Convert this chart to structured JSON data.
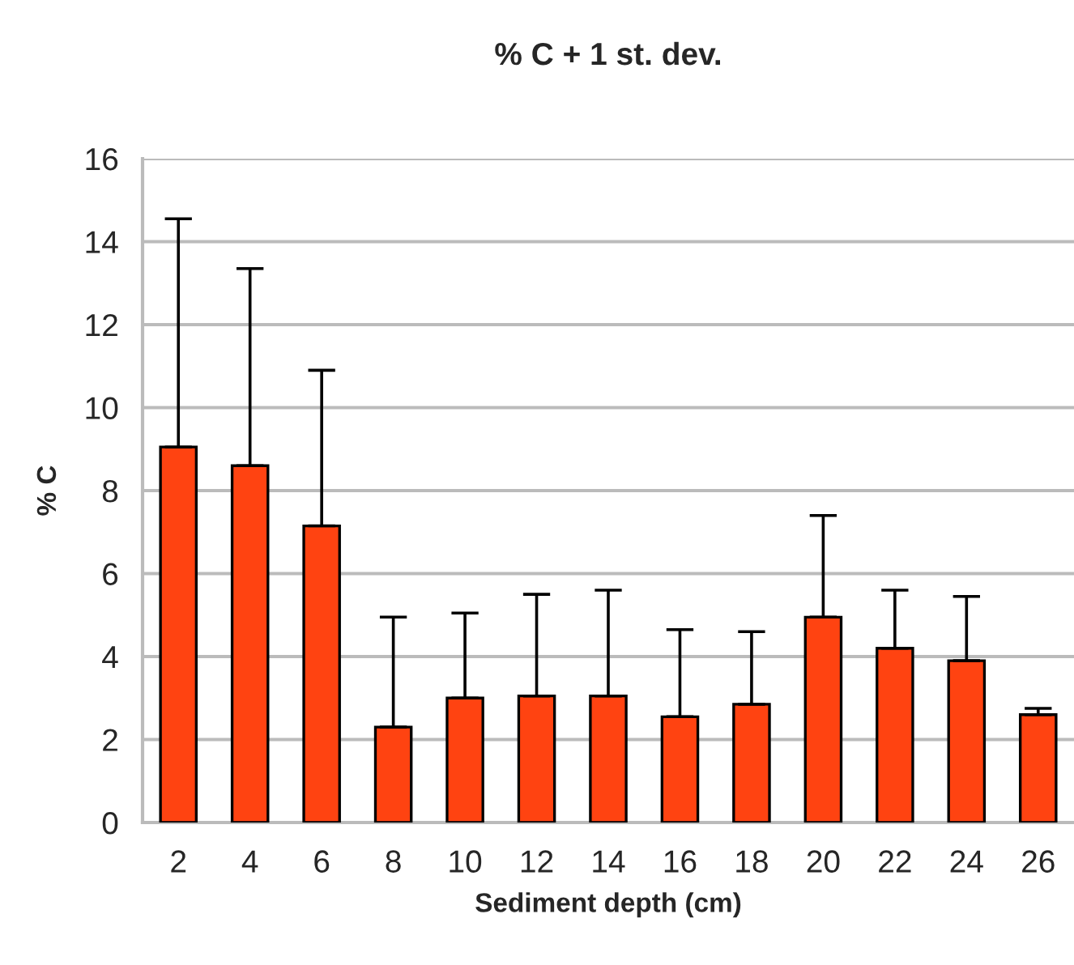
{
  "chart_data": {
    "type": "bar",
    "title": "% C + 1 st. dev.",
    "xlabel": "Sediment depth (cm)",
    "ylabel": "% C",
    "categories": [
      "2",
      "4",
      "6",
      "8",
      "10",
      "12",
      "14",
      "16",
      "18",
      "20",
      "22",
      "24",
      "26"
    ],
    "values": [
      9.05,
      8.6,
      7.15,
      2.3,
      3.0,
      3.05,
      3.05,
      2.55,
      2.85,
      4.95,
      4.2,
      3.9,
      2.6
    ],
    "errors": [
      [
        9.05,
        14.55
      ],
      [
        8.6,
        13.35
      ],
      [
        7.15,
        10.9
      ],
      [
        2.3,
        4.95
      ],
      [
        3.0,
        5.05
      ],
      [
        3.05,
        5.5
      ],
      [
        3.05,
        5.6
      ],
      [
        2.55,
        4.65
      ],
      [
        2.85,
        4.6
      ],
      [
        4.95,
        7.4
      ],
      [
        4.2,
        5.6
      ],
      [
        3.9,
        5.45
      ],
      [
        2.6,
        2.75
      ]
    ],
    "color": "#ff4311",
    "ylim": [
      0,
      16
    ],
    "yticks": [
      0,
      2,
      4,
      6,
      8,
      10,
      12,
      14,
      16
    ],
    "grid": "y"
  }
}
